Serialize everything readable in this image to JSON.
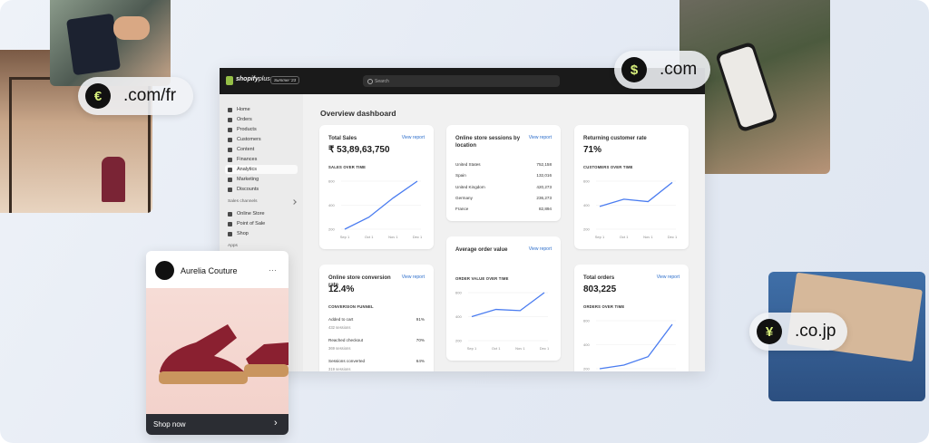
{
  "promo": {
    "domains": [
      {
        "symbol": "€",
        "text": ".com/fr"
      },
      {
        "symbol": "$",
        "text": ".com"
      },
      {
        "symbol": "¥",
        "text": ".co.jp"
      }
    ]
  },
  "app": {
    "brand": "shopify",
    "plan": "plus",
    "badge": "Summer '23",
    "search": "Search"
  },
  "sidebar": {
    "items": [
      "Home",
      "Orders",
      "Products",
      "Customers",
      "Content",
      "Finances",
      "Analytics",
      "Marketing",
      "Discounts"
    ],
    "section": "Sales channels",
    "channels": [
      "Online Store",
      "Point of Sale",
      "Shop"
    ],
    "apps": "Apps"
  },
  "dashboard": {
    "title": "Overview dashboard",
    "cards": [
      {
        "kind": "line",
        "title": "Total Sales",
        "value": "₹ 53,89,63,750",
        "link": "View report",
        "label": "SALES OVER TIME",
        "yticks": [
          600,
          400,
          200
        ],
        "x": [
          "Sep 1",
          "Oct 1",
          "Nov 1",
          "Dec 1"
        ],
        "values": [
          200,
          300,
          460,
          600
        ]
      },
      {
        "kind": "table",
        "title": "Online store sessions by location",
        "link": "View report",
        "rows": [
          [
            "United States",
            "752,158"
          ],
          [
            "Spain",
            "132,016"
          ],
          [
            "United Kingdom",
            "420,273"
          ],
          [
            "Germany",
            "236,273"
          ],
          [
            "France",
            "82,894"
          ]
        ]
      },
      {
        "kind": "line",
        "title": "Returning customer rate",
        "value": "71%",
        "label": "CUSTOMERS OVER TIME",
        "yticks": [
          600,
          400,
          200
        ],
        "x": [
          "Sep 1",
          "Oct 1",
          "Nov 1",
          "Dec 1"
        ],
        "values": [
          390,
          450,
          430,
          590
        ]
      },
      {
        "kind": "funnel",
        "title": "Online store conversion rate",
        "value": "12.4%",
        "link": "View report",
        "label": "CONVERSION FUNNEL",
        "rows": [
          [
            "Added to cart",
            "432 sessions",
            "91%"
          ],
          [
            "Reached checkout",
            "369 sessions",
            "70%"
          ],
          [
            "Sessions converted",
            "319 sessions",
            "64%"
          ]
        ]
      },
      {
        "kind": "line",
        "title": "Average order value",
        "link": "View report",
        "label": "ORDER VALUE OVER TIME",
        "yticks": [
          600,
          400,
          200
        ],
        "x": [
          "Sep 1",
          "Oct 1",
          "Nov 1",
          "Dec 1"
        ],
        "values": [
          400,
          460,
          450,
          600
        ]
      },
      {
        "kind": "line",
        "title": "Total orders",
        "value": "803,225",
        "link": "View report",
        "label": "ORDERS OVER TIME",
        "yticks": [
          600,
          400,
          200
        ],
        "x": [
          "Sep 1",
          "Oct 1",
          "Nov 1",
          "Dec 1"
        ],
        "values": [
          200,
          230,
          300,
          570
        ]
      }
    ]
  },
  "social": {
    "name": "Aurelia Couture",
    "menu": "···",
    "cta": "Shop now",
    "arrow": "›"
  }
}
